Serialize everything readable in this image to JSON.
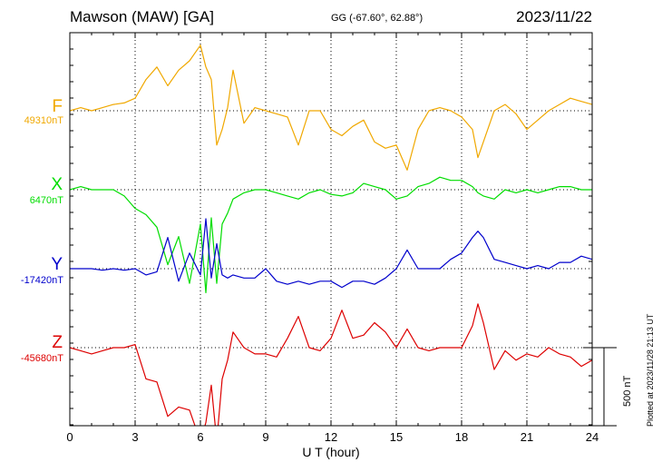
{
  "header": {
    "station": "Mawson (MAW)  [GA]",
    "coordinates": "GG (-67.60°,  62.88°)",
    "date": "2023/11/22"
  },
  "plotted_note": "Plotted at 2023/11/28 21:13 UT",
  "chart_data": {
    "type": "line",
    "title": "Mawson (MAW)  [GA]",
    "xlabel": "U T (hour)",
    "x_ticks": [
      0,
      3,
      6,
      9,
      12,
      15,
      18,
      21,
      24
    ],
    "xlim": [
      0,
      24
    ],
    "scale_bar": {
      "value": 500,
      "label": "500 nT"
    },
    "x": [
      0,
      0.5,
      1,
      1.5,
      2,
      2.5,
      3,
      3.5,
      4,
      4.5,
      5,
      5.5,
      6,
      6.25,
      6.5,
      6.75,
      7,
      7.25,
      7.5,
      8,
      8.5,
      9,
      9.5,
      10,
      10.5,
      11,
      11.5,
      12,
      12.5,
      13,
      13.5,
      14,
      14.5,
      15,
      15.5,
      16,
      16.5,
      17,
      17.5,
      18,
      18.5,
      18.75,
      19,
      19.5,
      20,
      20.5,
      21,
      21.5,
      22,
      22.5,
      23,
      23.5,
      24
    ],
    "series": [
      {
        "name": "F",
        "baseline_label": "49310nT",
        "baseline": 49310,
        "color": "#f0a800",
        "values": [
          0,
          20,
          0,
          20,
          40,
          50,
          80,
          200,
          280,
          160,
          260,
          320,
          420,
          280,
          200,
          -220,
          -120,
          20,
          260,
          -80,
          20,
          0,
          -20,
          -40,
          -220,
          0,
          0,
          -120,
          -160,
          -100,
          -60,
          -200,
          -240,
          -220,
          -380,
          -120,
          0,
          20,
          0,
          -40,
          -120,
          -300,
          -200,
          0,
          40,
          -20,
          -120,
          -60,
          0,
          40,
          80,
          60,
          40
        ]
      },
      {
        "name": "X",
        "baseline_label": "6470nT",
        "baseline": 6470,
        "color": "#00dd00",
        "values": [
          0,
          20,
          0,
          0,
          0,
          -40,
          -120,
          -160,
          -240,
          -480,
          -300,
          -600,
          -220,
          -660,
          -180,
          -600,
          -220,
          -150,
          -60,
          -20,
          0,
          0,
          -20,
          -40,
          -60,
          -20,
          0,
          -30,
          -40,
          -20,
          40,
          20,
          0,
          -60,
          -40,
          20,
          40,
          80,
          60,
          60,
          20,
          -20,
          -40,
          -60,
          0,
          -20,
          0,
          -20,
          0,
          20,
          20,
          0,
          0
        ]
      },
      {
        "name": "Y",
        "baseline_label": "-17420nT",
        "baseline": -17420,
        "color": "#0000cc",
        "values": [
          0,
          0,
          0,
          -10,
          0,
          -10,
          0,
          -40,
          -20,
          200,
          -80,
          100,
          -40,
          320,
          -60,
          160,
          -40,
          -60,
          -40,
          -60,
          -60,
          0,
          -80,
          -100,
          -80,
          -100,
          -80,
          -80,
          -120,
          -80,
          -80,
          -100,
          -60,
          0,
          120,
          0,
          0,
          0,
          60,
          100,
          200,
          240,
          200,
          60,
          40,
          20,
          0,
          20,
          0,
          40,
          40,
          80,
          60
        ]
      },
      {
        "name": "Z",
        "baseline_label": "-45680nT",
        "baseline": -45680,
        "color": "#dd0000",
        "values": [
          0,
          -20,
          -40,
          -20,
          0,
          0,
          20,
          -200,
          -220,
          -440,
          -380,
          -400,
          -600,
          -480,
          -240,
          -600,
          -200,
          -80,
          100,
          0,
          -40,
          -40,
          -60,
          60,
          200,
          0,
          -20,
          60,
          240,
          60,
          80,
          160,
          100,
          0,
          120,
          0,
          -20,
          0,
          0,
          0,
          140,
          280,
          160,
          -140,
          -20,
          -80,
          -40,
          -60,
          0,
          -40,
          -60,
          -120,
          -80
        ]
      }
    ]
  }
}
